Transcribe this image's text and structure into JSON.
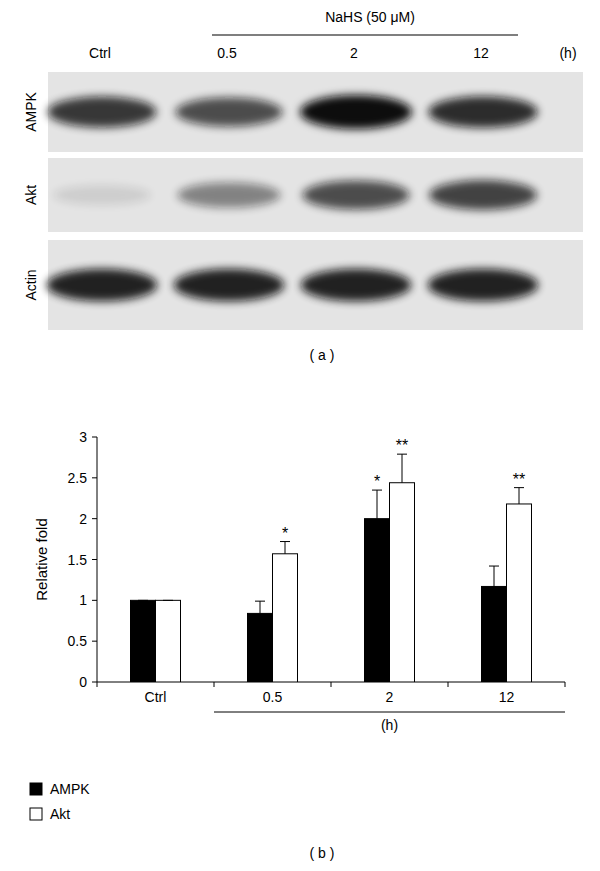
{
  "blot": {
    "treatment": "NaHS (50 μM)",
    "lanes": [
      "Ctrl",
      "0.5",
      "2",
      "12"
    ],
    "unit": "(h)",
    "rows": [
      {
        "label": "AMPK",
        "intensity": [
          0.8,
          0.7,
          1.0,
          0.85
        ]
      },
      {
        "label": "Akt",
        "intensity": [
          0.1,
          0.45,
          0.7,
          0.75
        ]
      },
      {
        "label": "Actin",
        "intensity": [
          0.9,
          0.9,
          0.9,
          0.9
        ]
      }
    ],
    "panel_label": "( a )"
  },
  "chart_data": {
    "type": "bar",
    "categories": [
      "Ctrl",
      "0.5",
      "2",
      "12"
    ],
    "series": [
      {
        "name": "AMPK",
        "color": "#000000",
        "values": [
          1,
          0.84,
          2.0,
          1.17
        ],
        "errors": [
          0,
          0.15,
          0.35,
          0.25
        ],
        "significance": [
          null,
          null,
          "*",
          null
        ]
      },
      {
        "name": "Akt",
        "color": "#ffffff",
        "values": [
          1,
          1.57,
          2.44,
          2.18
        ],
        "errors": [
          0,
          0.15,
          0.35,
          0.2
        ],
        "significance": [
          null,
          "*",
          "**",
          "**"
        ]
      }
    ],
    "y_label": "Relative fold",
    "x_label": "(h)",
    "ylim": [
      0,
      3
    ],
    "yticks": [
      0,
      0.5,
      1,
      1.5,
      2,
      2.5,
      3
    ],
    "grid": false,
    "legend": "bottom-left",
    "panel_label": "( b )"
  }
}
